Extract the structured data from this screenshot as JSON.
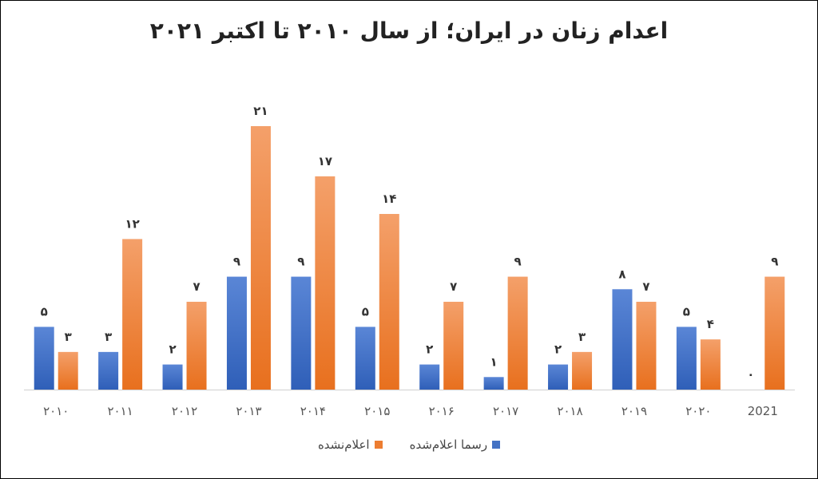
{
  "chart_data": {
    "type": "bar",
    "title": "اعدام زنان در ایران؛ از سال ۲۰۱۰ تا اکتبر ۲۰۲۱",
    "categories": [
      "۲۰۱۰",
      "۲۰۱۱",
      "۲۰۱۲",
      "۲۰۱۳",
      "۲۰۱۴",
      "۲۰۱۵",
      "۲۰۱۶",
      "۲۰۱۷",
      "۲۰۱۸",
      "۲۰۱۹",
      "۲۰۲۰",
      "2021"
    ],
    "series": [
      {
        "name": "رسما اعلام‌شده",
        "color": "#4472C4",
        "values": [
          5,
          3,
          2,
          9,
          9,
          5,
          2,
          1,
          2,
          8,
          5,
          0
        ],
        "labels": [
          "۵",
          "۳",
          "۲",
          "۹",
          "۹",
          "۵",
          "۲",
          "۱",
          "۲",
          "۸",
          "۵",
          "۰"
        ]
      },
      {
        "name": "اعلام‌نشده",
        "color": "#ED7D31",
        "values": [
          3,
          12,
          7,
          21,
          17,
          14,
          7,
          9,
          3,
          7,
          4,
          9
        ],
        "labels": [
          "۳",
          "۱۲",
          "۷",
          "۲۱",
          "۱۷",
          "۱۴",
          "۷",
          "۹",
          "۳",
          "۷",
          "۴",
          "۹"
        ]
      }
    ],
    "ylim": [
      0,
      21
    ],
    "grid": false,
    "legend_position": "bottom"
  }
}
